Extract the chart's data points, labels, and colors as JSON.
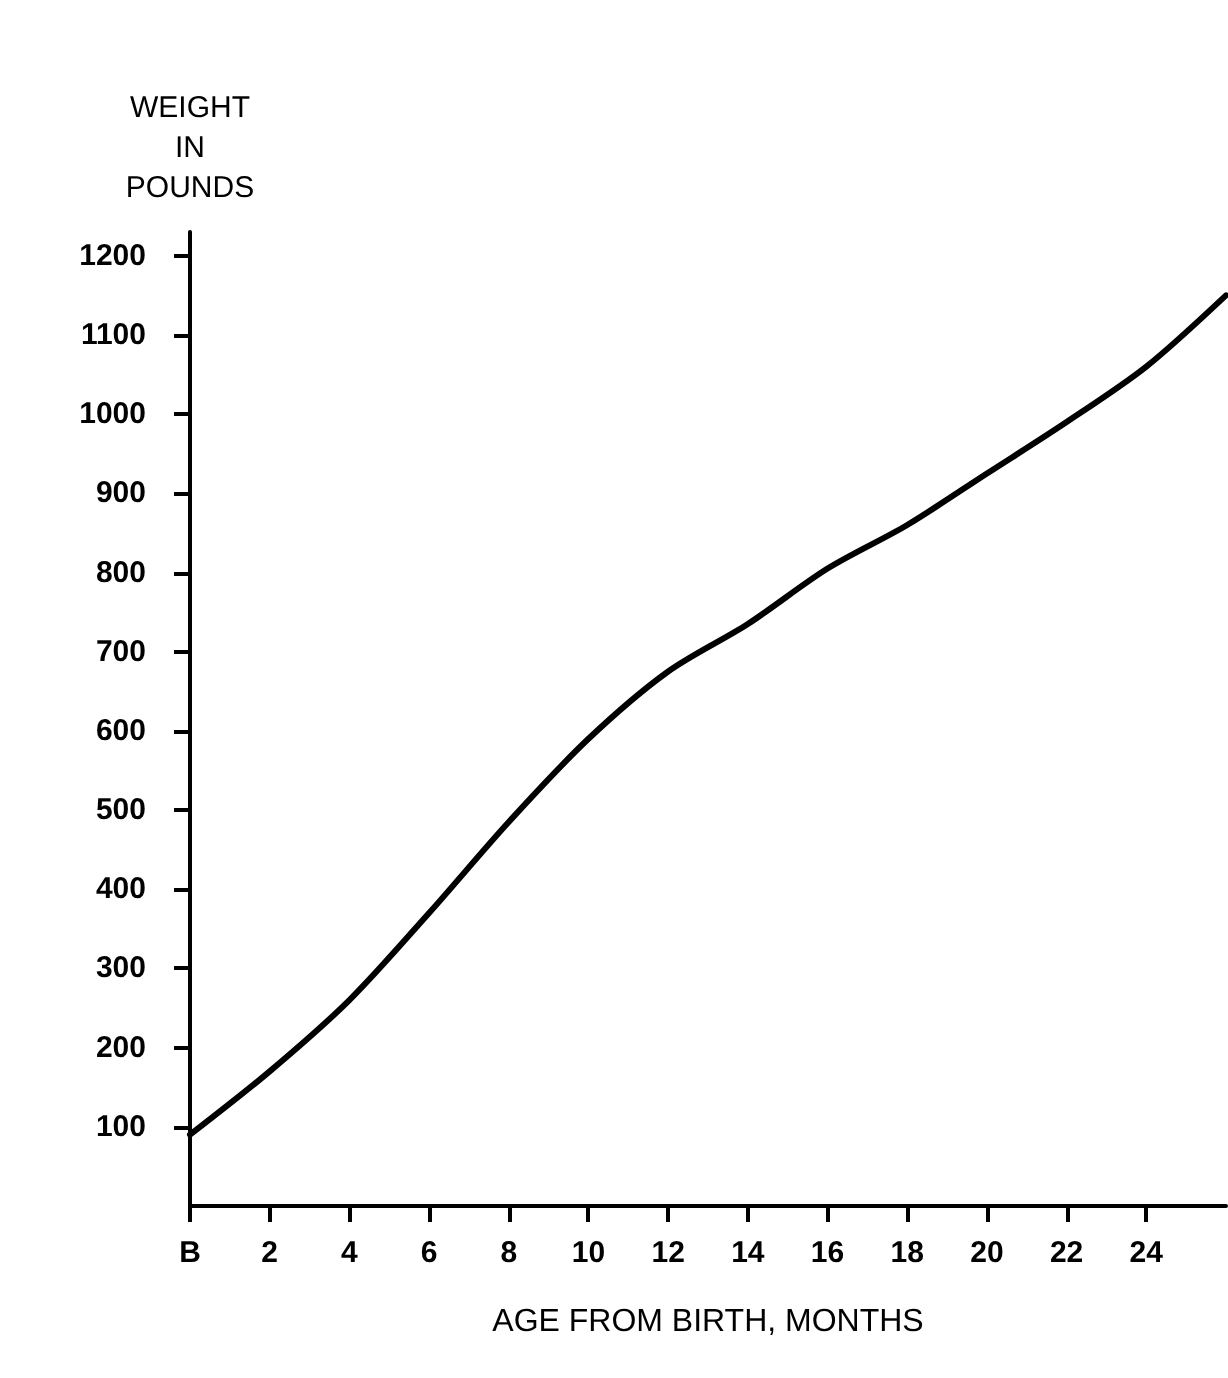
{
  "chart_data": {
    "type": "line",
    "xlabel": "AGE FROM BIRTH, MONTHS",
    "ylabel": "WEIGHT\nIN\nPOUNDS",
    "x": [
      0,
      2,
      4,
      6,
      8,
      10,
      12,
      14,
      16,
      18,
      20,
      22,
      24,
      26
    ],
    "series": [
      {
        "color": "#000000",
        "values": [
          90,
          170,
          260,
          370,
          485,
          590,
          675,
          735,
          805,
          860,
          925,
          990,
          1060,
          1150
        ]
      }
    ],
    "xlim": [
      0,
      26
    ],
    "xticks": [
      {
        "value": 0,
        "label": "B"
      },
      2,
      4,
      6,
      8,
      10,
      12,
      14,
      16,
      18,
      20,
      22,
      24
    ],
    "ylim": [
      0,
      1230
    ],
    "yticks": [
      100,
      200,
      300,
      400,
      500,
      600,
      700,
      800,
      900,
      1000,
      1100,
      1200
    ],
    "grid": false,
    "marker": "none",
    "line_style": "solid"
  }
}
